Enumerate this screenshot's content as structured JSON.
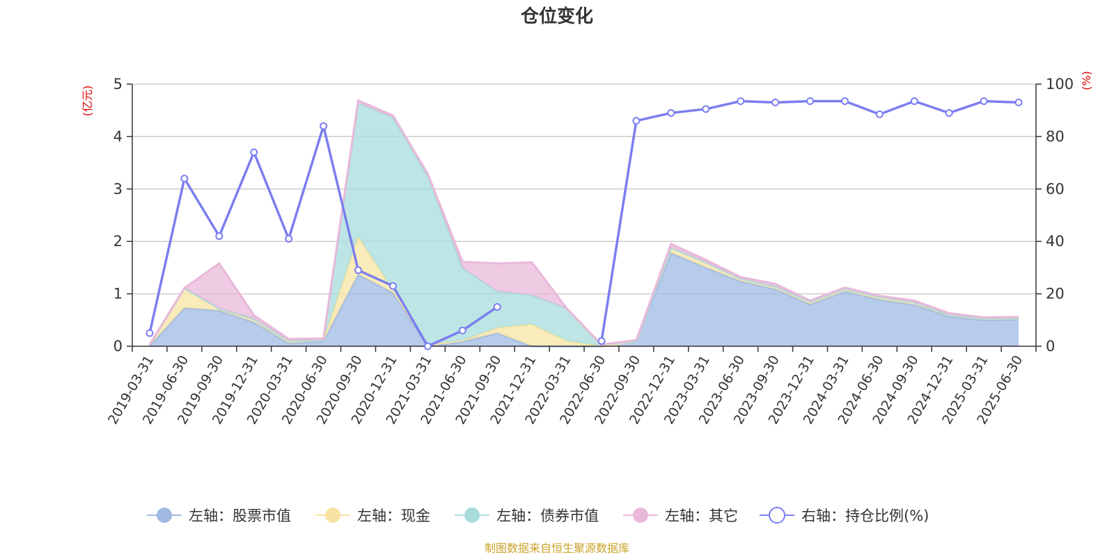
{
  "chart_data": {
    "type": "area",
    "title": "仓位变化",
    "source_note": "制图数据来自恒生聚源数据库",
    "left_axis": {
      "unit": "(亿元)",
      "range": [
        0,
        5
      ],
      "ticks": [
        0,
        1,
        2,
        3,
        4,
        5
      ]
    },
    "right_axis": {
      "unit": "(%)",
      "range": [
        0,
        100
      ],
      "ticks": [
        0,
        20,
        40,
        60,
        80,
        100
      ]
    },
    "grid": true,
    "legend_position": "bottom",
    "categories": [
      "2019-03-31",
      "2019-06-30",
      "2019-09-30",
      "2019-12-31",
      "2020-03-31",
      "2020-06-30",
      "2020-09-30",
      "2020-12-31",
      "2021-03-31",
      "2021-06-30",
      "2021-09-30",
      "2021-12-31",
      "2022-03-31",
      "2022-06-30",
      "2022-09-30",
      "2022-12-31",
      "2023-03-31",
      "2023-06-30",
      "2023-09-30",
      "2023-12-31",
      "2024-03-31",
      "2024-06-30",
      "2024-09-30",
      "2024-12-31",
      "2025-03-31",
      "2025-06-30"
    ],
    "series": [
      {
        "name": "左轴：股票市值",
        "axis": "left",
        "type": "stacked-area",
        "color": "#9fb9e3",
        "values": [
          0.01,
          0.73,
          0.68,
          0.46,
          0.06,
          0.1,
          1.37,
          1.02,
          0.0,
          0.09,
          0.25,
          0.0,
          0.0,
          0.0,
          0.1,
          1.78,
          1.5,
          1.24,
          1.09,
          0.8,
          1.05,
          0.89,
          0.79,
          0.57,
          0.5,
          0.51
        ]
      },
      {
        "name": "左轴：现金",
        "axis": "left",
        "type": "stacked-area",
        "color": "#f7e4a3",
        "values": [
          0.02,
          0.38,
          0.04,
          0.06,
          0.05,
          0.02,
          0.72,
          0.05,
          0.03,
          0.02,
          0.1,
          0.42,
          0.1,
          0.0,
          0.0,
          0.1,
          0.1,
          0.05,
          0.05,
          0.05,
          0.05,
          0.05,
          0.05,
          0.03,
          0.03,
          0.03
        ]
      },
      {
        "name": "左轴：债券市值",
        "axis": "left",
        "type": "stacked-area",
        "color": "#a8dcdc",
        "values": [
          0.0,
          0.0,
          0.0,
          0.0,
          0.0,
          0.0,
          2.55,
          3.29,
          3.22,
          1.38,
          0.7,
          0.55,
          0.62,
          0.03,
          0.0,
          0.0,
          0.0,
          0.0,
          0.0,
          0.0,
          0.0,
          0.0,
          0.0,
          0.0,
          0.0,
          0.0
        ]
      },
      {
        "name": "左轴：其它",
        "axis": "left",
        "type": "stacked-area",
        "color": "#e9b8da",
        "values": [
          0.0,
          0.0,
          0.86,
          0.07,
          0.03,
          0.03,
          0.05,
          0.04,
          0.04,
          0.12,
          0.53,
          0.63,
          0.0,
          0.0,
          0.02,
          0.07,
          0.05,
          0.03,
          0.05,
          0.02,
          0.02,
          0.02,
          0.03,
          0.03,
          0.02,
          0.02
        ]
      },
      {
        "name": "右轴：持仓比例(%)",
        "axis": "right",
        "type": "line",
        "color": "#7b7ef0",
        "values": [
          5,
          64,
          42,
          74,
          41,
          84,
          29,
          23,
          0,
          6,
          15,
          null,
          null,
          2,
          86,
          89,
          90.5,
          93.5,
          93,
          93.5,
          93.5,
          88.5,
          93.5,
          89,
          93.5,
          93
        ]
      }
    ]
  }
}
